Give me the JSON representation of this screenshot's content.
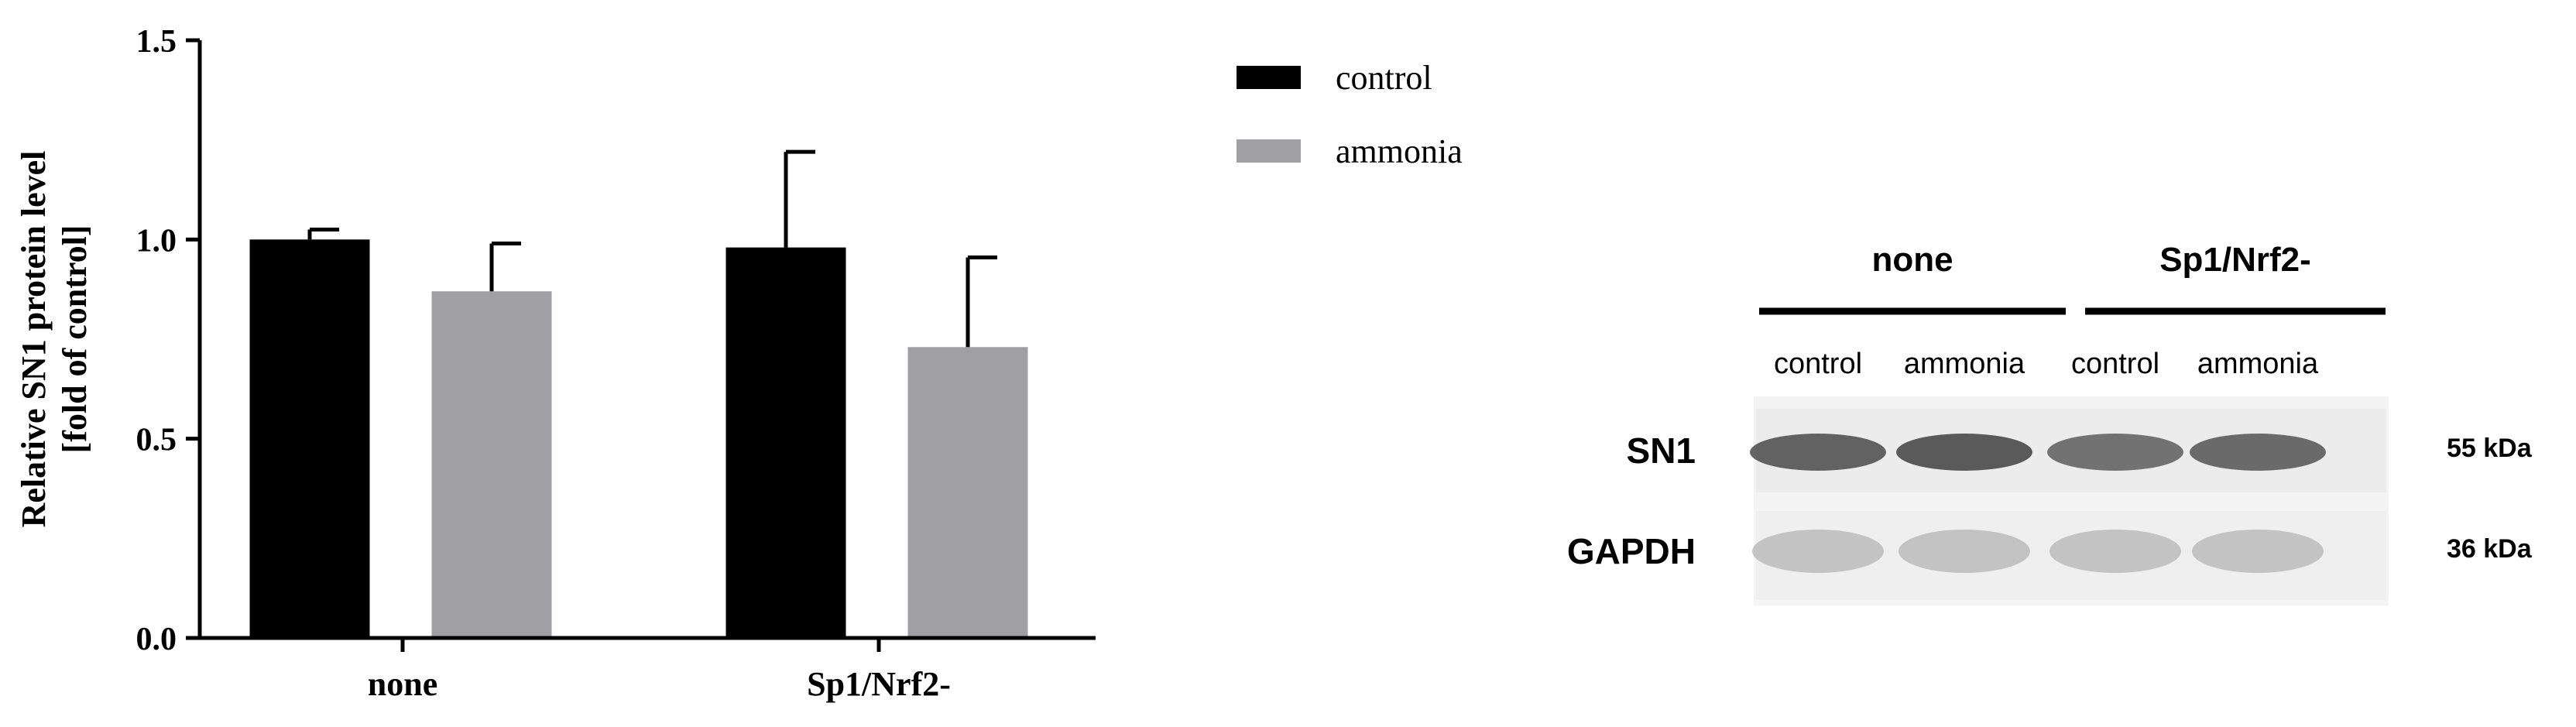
{
  "chart_data": {
    "type": "bar",
    "title": "",
    "ylabel_line1": "Relative SN1 protein level",
    "ylabel_line2": "[fold of control]",
    "xlabel": "",
    "categories": [
      "none",
      "Sp1/Nrf2-"
    ],
    "ylim": [
      0,
      1.5
    ],
    "yticks": [
      0.0,
      0.5,
      1.0,
      1.5
    ],
    "ytick_labels": [
      "0.0",
      "0.5",
      "1.0",
      "1.5"
    ],
    "grid": false,
    "legend_position": "top-right",
    "series": [
      {
        "name": "control",
        "color": "#000000",
        "values": [
          1.0,
          0.98
        ],
        "errors": [
          0.025,
          0.24
        ]
      },
      {
        "name": "ammonia",
        "color": "#a0a0a4",
        "values": [
          0.87,
          0.73
        ],
        "errors": [
          0.12,
          0.225
        ]
      }
    ]
  },
  "blot": {
    "groups": [
      {
        "label": "none",
        "lanes": [
          "control",
          "ammonia"
        ]
      },
      {
        "label": "Sp1/Nrf2-",
        "lanes": [
          "control",
          "ammonia"
        ]
      }
    ],
    "rows": [
      {
        "label": "SN1",
        "size": "55 kDa"
      },
      {
        "label": "GAPDH",
        "size": "36 kDa"
      }
    ]
  }
}
